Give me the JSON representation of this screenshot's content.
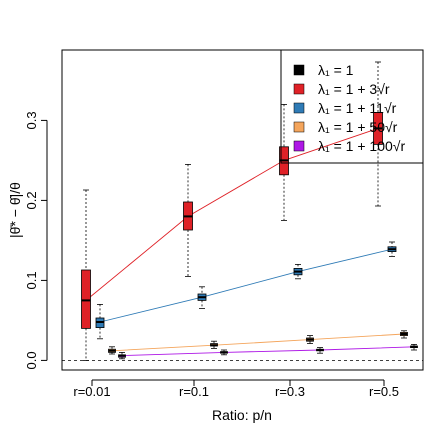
{
  "chart_data": {
    "type": "box",
    "xlabel": "Ratio: p/n",
    "ylabel": "|θ̄* − θ̂|/θ",
    "categories": [
      "r=0.01",
      "r=0.1",
      "r=0.3",
      "r=0.5"
    ],
    "y_ticks": [
      "0.0",
      "0.1",
      "0.2",
      "0.3"
    ],
    "ylim": [
      -0.012,
      0.388
    ],
    "grid": false,
    "reference_line_y": 0,
    "legend_position": "top-right",
    "series": [
      {
        "name": "λ₁ = 1",
        "color": "#000000",
        "boxes": []
      },
      {
        "name": "λ₁ = 1 + 3√r",
        "color": "#df2127",
        "boxes": [
          {
            "min": 0.0,
            "q1": 0.04,
            "median": 0.075,
            "q3": 0.113,
            "max": 0.213
          },
          {
            "min": 0.105,
            "q1": 0.163,
            "median": 0.18,
            "q3": 0.198,
            "max": 0.245
          },
          {
            "min": 0.175,
            "q1": 0.232,
            "median": 0.25,
            "q3": 0.267,
            "max": 0.32
          },
          {
            "min": 0.193,
            "q1": 0.27,
            "median": 0.29,
            "q3": 0.31,
            "max": 0.373
          }
        ]
      },
      {
        "name": "λ₁ = 1 + 11√r",
        "color": "#2f7bb6",
        "boxes": [
          {
            "min": 0.027,
            "q1": 0.041,
            "median": 0.048,
            "q3": 0.053,
            "max": 0.07
          },
          {
            "min": 0.065,
            "q1": 0.075,
            "median": 0.079,
            "q3": 0.083,
            "max": 0.092
          },
          {
            "min": 0.102,
            "q1": 0.107,
            "median": 0.111,
            "q3": 0.115,
            "max": 0.12
          },
          {
            "min": 0.13,
            "q1": 0.136,
            "median": 0.139,
            "q3": 0.142,
            "max": 0.148
          }
        ]
      },
      {
        "name": "λ₁ = 1 + 50√r",
        "color": "#f4a55c",
        "boxes": [
          {
            "min": 0.008,
            "q1": 0.01,
            "median": 0.012,
            "q3": 0.014,
            "max": 0.017
          },
          {
            "min": 0.015,
            "q1": 0.018,
            "median": 0.019,
            "q3": 0.021,
            "max": 0.024
          },
          {
            "min": 0.021,
            "q1": 0.024,
            "median": 0.026,
            "q3": 0.028,
            "max": 0.031
          },
          {
            "min": 0.028,
            "q1": 0.031,
            "median": 0.033,
            "q3": 0.035,
            "max": 0.037
          }
        ]
      },
      {
        "name": "λ₁ = 1 + 100√r",
        "color": "#ae17e6",
        "boxes": [
          {
            "min": 0.002,
            "q1": 0.004,
            "median": 0.006,
            "q3": 0.007,
            "max": 0.01
          },
          {
            "min": 0.007,
            "q1": 0.009,
            "median": 0.01,
            "q3": 0.011,
            "max": 0.013
          },
          {
            "min": 0.009,
            "q1": 0.012,
            "median": 0.013,
            "q3": 0.014,
            "max": 0.016
          },
          {
            "min": 0.013,
            "q1": 0.016,
            "median": 0.017,
            "q3": 0.018,
            "max": 0.02
          }
        ]
      }
    ]
  }
}
